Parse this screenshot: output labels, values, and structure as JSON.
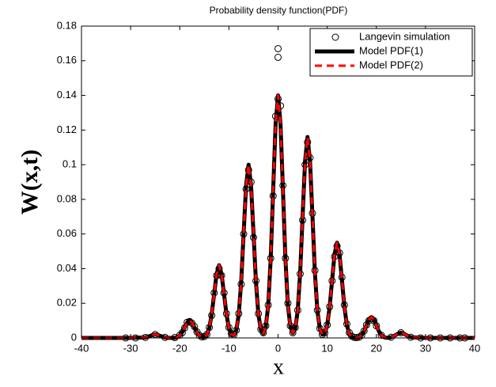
{
  "chart_data": {
    "type": "line",
    "title": "Probability density function(PDF)",
    "x_label": "x",
    "y_label": "W(x,t)",
    "xlim": [
      -40,
      40
    ],
    "xticks": [
      -40,
      -30,
      -20,
      -10,
      0,
      10,
      20,
      30,
      40
    ],
    "ylim": [
      0,
      0.18
    ],
    "yticks": [
      0,
      0.02,
      0.04,
      0.06,
      0.08,
      0.1,
      0.12,
      0.14,
      0.16,
      0.18
    ],
    "legend": "upper right",
    "x": [
      -40,
      -35,
      -30,
      -27,
      -26.5,
      -26,
      -25.5,
      -25,
      -24.5,
      -24,
      -23.5,
      -23,
      -22.5,
      -22,
      -21.5,
      -21,
      -20.5,
      -20,
      -19.5,
      -19,
      -18.5,
      -18,
      -17.5,
      -17,
      -16.5,
      -16,
      -15.5,
      -15,
      -14.5,
      -14,
      -13.5,
      -13,
      -12.5,
      -12,
      -11.5,
      -11,
      -10.5,
      -10,
      -9.5,
      -9,
      -8.5,
      -8,
      -7.5,
      -7,
      -6.5,
      -6,
      -5.5,
      -5,
      -4.5,
      -4,
      -3.5,
      -3,
      -2.5,
      -2,
      -1.5,
      -1,
      -0.5,
      0,
      0.5,
      1,
      1.5,
      2,
      2.5,
      3,
      3.5,
      4,
      4.5,
      5,
      5.5,
      6,
      6.5,
      7,
      7.5,
      8,
      8.5,
      9,
      9.5,
      10,
      10.5,
      11,
      11.5,
      12,
      12.5,
      13,
      13.5,
      14,
      14.5,
      15,
      15.5,
      16,
      16.5,
      17,
      17.5,
      18,
      18.5,
      19,
      19.5,
      20,
      20.5,
      21,
      21.5,
      22,
      22.5,
      23,
      23.5,
      24,
      24.5,
      25,
      25.5,
      26,
      26.5,
      27,
      30,
      35,
      40
    ],
    "series": [
      {
        "name": "Langevin simulation",
        "color": "#000000",
        "style": "marker",
        "x": [
          -31,
          -29,
          -27,
          -25,
          -23,
          -21,
          -20,
          -19.5,
          -19,
          -18.5,
          -18,
          -17.5,
          -17,
          -16.5,
          -16,
          -15.5,
          -15,
          -14.5,
          -14,
          -13.5,
          -13,
          -12.5,
          -12,
          -11.5,
          -11,
          -10.5,
          -10,
          -9.5,
          -9,
          -8.5,
          -8,
          -7.5,
          -7,
          -6.5,
          -6,
          -5.5,
          -5,
          -4.5,
          -4,
          -3.5,
          -3,
          -2.5,
          -2,
          -1.5,
          -1,
          -0.5,
          0,
          0.5,
          1,
          1.5,
          2,
          2.5,
          3,
          3.5,
          4,
          4.5,
          5,
          5.5,
          6,
          6.5,
          7,
          7.5,
          8,
          8.5,
          9,
          9.5,
          10,
          10.5,
          11,
          11.5,
          12,
          12.5,
          13,
          13.5,
          14,
          14.5,
          15,
          15.5,
          16,
          16.5,
          17,
          17.5,
          18,
          18.5,
          19,
          19.5,
          20,
          21,
          23,
          25,
          27,
          29,
          31,
          33,
          35,
          37,
          38,
          0,
          0
        ],
        "values": [
          0,
          0,
          0.0003,
          0.002,
          0.0003,
          0.0002,
          0.0016,
          0.003,
          0.0058,
          0.009,
          0.0095,
          0.0085,
          0.0065,
          0.0035,
          0.0015,
          0.0006,
          0.0008,
          0.002,
          0.006,
          0.013,
          0.026,
          0.036,
          0.04,
          0.036,
          0.026,
          0.014,
          0.006,
          0.0025,
          0.0018,
          0.0045,
          0.014,
          0.031,
          0.06,
          0.086,
          0.097,
          0.09,
          0.058,
          0.033,
          0.014,
          0.005,
          0.003,
          0.007,
          0.019,
          0.046,
          0.082,
          0.128,
          0.138,
          0.134,
          0.088,
          0.046,
          0.02,
          0.007,
          0.003,
          0.006,
          0.016,
          0.037,
          0.068,
          0.1,
          0.113,
          0.104,
          0.072,
          0.039,
          0.016,
          0.0055,
          0.002,
          0.003,
          0.0075,
          0.018,
          0.033,
          0.047,
          0.053,
          0.049,
          0.035,
          0.019,
          0.008,
          0.003,
          0.001,
          0.0003,
          0.0002,
          0.0005,
          0.0015,
          0.004,
          0.0075,
          0.01,
          0.011,
          0.01,
          0.007,
          0.0016,
          0.0004,
          0.003,
          0.0004,
          0,
          0,
          0,
          0,
          0,
          0,
          0.167,
          0.162
        ]
      },
      {
        "name": "Model PDF(1)",
        "color": "#000000",
        "style": "solid",
        "values": [
          0,
          0,
          0,
          0.0003,
          0.0007,
          0.0012,
          0.0018,
          0.002,
          0.0018,
          0.0012,
          0.0007,
          0.0003,
          0.0001,
          0,
          0,
          0.0001,
          0.0004,
          0.0014,
          0.0033,
          0.0061,
          0.0088,
          0.01,
          0.0088,
          0.0061,
          0.0033,
          0.0014,
          0.0005,
          0.0006,
          0.0018,
          0.0057,
          0.0137,
          0.0255,
          0.037,
          0.042,
          0.037,
          0.0255,
          0.0137,
          0.0057,
          0.0021,
          0.0016,
          0.0044,
          0.0135,
          0.0325,
          0.0607,
          0.0882,
          0.1,
          0.0882,
          0.0607,
          0.0325,
          0.0135,
          0.0048,
          0.0026,
          0.0065,
          0.0189,
          0.0455,
          0.085,
          0.1235,
          0.14,
          0.1235,
          0.085,
          0.0455,
          0.0189,
          0.0066,
          0.0028,
          0.0055,
          0.0157,
          0.0377,
          0.0704,
          0.1023,
          0.116,
          0.1023,
          0.0704,
          0.0377,
          0.0157,
          0.0054,
          0.0019,
          0.0027,
          0.0074,
          0.0179,
          0.0334,
          0.0485,
          0.055,
          0.0485,
          0.0334,
          0.0179,
          0.0074,
          0.0024,
          0.0006,
          0.0001,
          0.0001,
          0.0005,
          0.0016,
          0.0039,
          0.0073,
          0.0106,
          0.012,
          0.0106,
          0.0073,
          0.0039,
          0.0016,
          0.0005,
          0.0001,
          0.0001,
          0.0004,
          0.001,
          0.0018,
          0.0026,
          0.003,
          0.0026,
          0.0018,
          0.001,
          0.0004,
          0,
          0,
          0
        ]
      },
      {
        "name": "Model PDF(2)",
        "color": "#ff0000",
        "style": "dashed",
        "values": [
          0,
          0,
          0,
          0.0003,
          0.0007,
          0.0012,
          0.0018,
          0.002,
          0.0018,
          0.0012,
          0.0007,
          0.0003,
          0.0001,
          0,
          0,
          0.0001,
          0.0004,
          0.0014,
          0.0033,
          0.0061,
          0.0088,
          0.01,
          0.0088,
          0.0061,
          0.0033,
          0.0014,
          0.0005,
          0.0006,
          0.0018,
          0.0057,
          0.0137,
          0.0255,
          0.037,
          0.042,
          0.037,
          0.0255,
          0.0137,
          0.0057,
          0.0021,
          0.0016,
          0.0044,
          0.0135,
          0.0325,
          0.0607,
          0.0882,
          0.1,
          0.0882,
          0.0607,
          0.0325,
          0.0135,
          0.0048,
          0.0026,
          0.0065,
          0.0189,
          0.0455,
          0.085,
          0.1235,
          0.14,
          0.1235,
          0.085,
          0.0455,
          0.0189,
          0.0066,
          0.0028,
          0.0055,
          0.0157,
          0.0377,
          0.0704,
          0.1023,
          0.116,
          0.1023,
          0.0704,
          0.0377,
          0.0157,
          0.0054,
          0.0019,
          0.0027,
          0.0074,
          0.0179,
          0.0334,
          0.0485,
          0.055,
          0.0485,
          0.0334,
          0.0179,
          0.0074,
          0.0024,
          0.0006,
          0.0001,
          0.0001,
          0.0005,
          0.0016,
          0.0039,
          0.0073,
          0.0106,
          0.012,
          0.0106,
          0.0073,
          0.0039,
          0.0016,
          0.0005,
          0.0001,
          0.0001,
          0.0004,
          0.001,
          0.0018,
          0.0026,
          0.003,
          0.0026,
          0.0018,
          0.001,
          0.0004,
          0,
          0,
          0
        ]
      }
    ]
  }
}
